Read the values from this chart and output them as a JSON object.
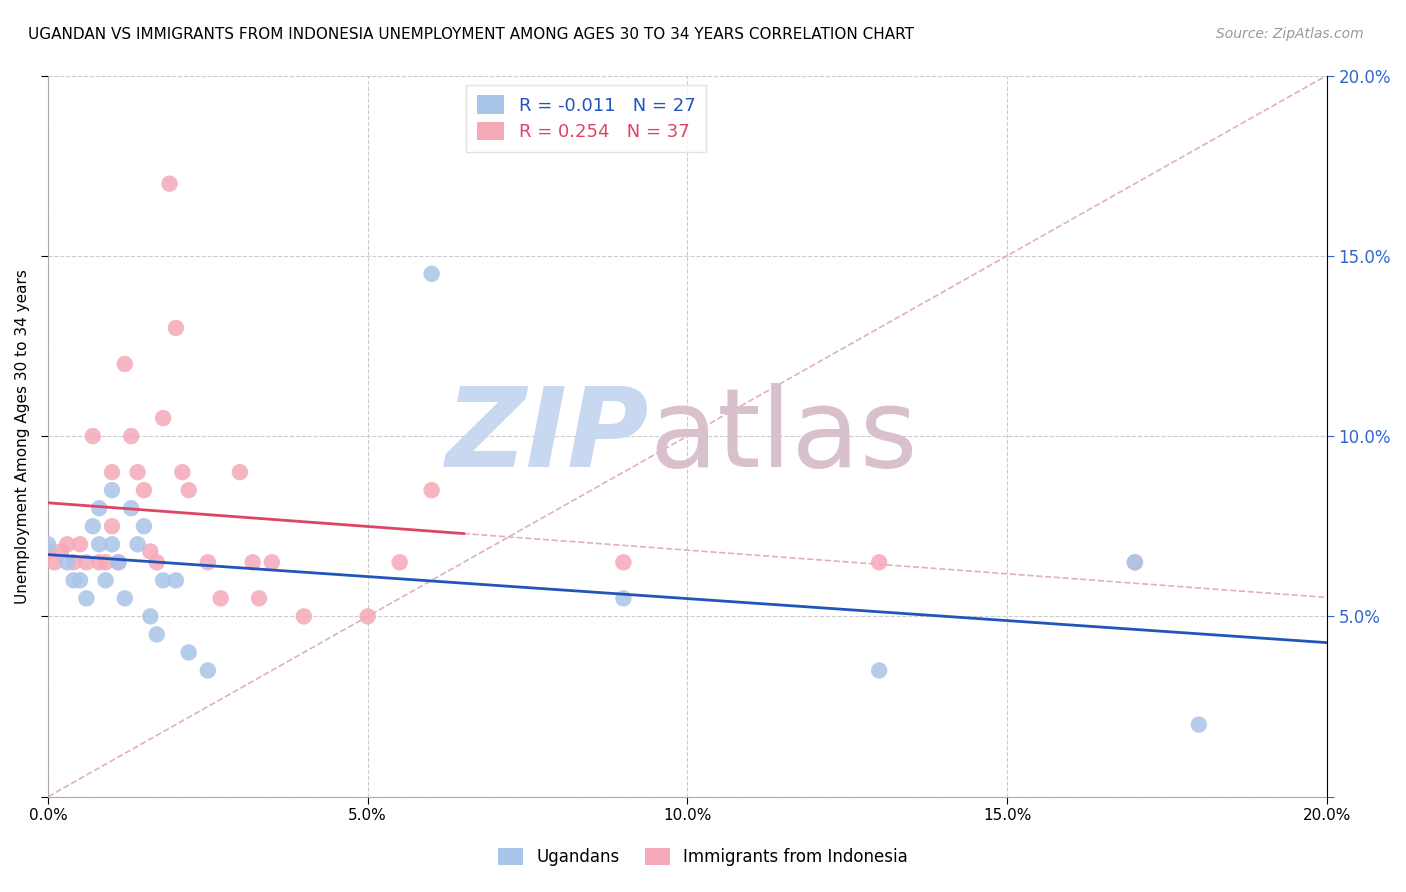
{
  "title": "UGANDAN VS IMMIGRANTS FROM INDONESIA UNEMPLOYMENT AMONG AGES 30 TO 34 YEARS CORRELATION CHART",
  "source": "Source: ZipAtlas.com",
  "ylabel": "Unemployment Among Ages 30 to 34 years",
  "xlim": [
    0,
    0.2
  ],
  "ylim": [
    0,
    0.2
  ],
  "xticks": [
    0.0,
    0.05,
    0.1,
    0.15,
    0.2
  ],
  "yticks": [
    0.0,
    0.05,
    0.1,
    0.15,
    0.2
  ],
  "ugandan_R": -0.011,
  "ugandan_N": 27,
  "indonesia_R": 0.254,
  "indonesia_N": 37,
  "ugandan_color": "#a8c4e8",
  "indonesia_color": "#f5a8b8",
  "ugandan_line_color": "#2255bb",
  "indonesia_line_color": "#dd4466",
  "diagonal_color": "#e0b0bc",
  "watermark_zip_color": "#c8d8f0",
  "watermark_atlas_color": "#d8c0cc",
  "ugandan_x": [
    0.0,
    0.003,
    0.004,
    0.005,
    0.006,
    0.007,
    0.008,
    0.008,
    0.009,
    0.01,
    0.01,
    0.011,
    0.012,
    0.013,
    0.014,
    0.015,
    0.016,
    0.017,
    0.018,
    0.02,
    0.022,
    0.025,
    0.06,
    0.09,
    0.13,
    0.17,
    0.18
  ],
  "ugandan_y": [
    0.07,
    0.065,
    0.06,
    0.06,
    0.055,
    0.075,
    0.08,
    0.07,
    0.06,
    0.085,
    0.07,
    0.065,
    0.055,
    0.08,
    0.07,
    0.075,
    0.05,
    0.045,
    0.06,
    0.06,
    0.04,
    0.035,
    0.145,
    0.055,
    0.035,
    0.065,
    0.02
  ],
  "indonesia_x": [
    0.0,
    0.001,
    0.002,
    0.003,
    0.004,
    0.005,
    0.006,
    0.007,
    0.008,
    0.009,
    0.01,
    0.01,
    0.011,
    0.012,
    0.013,
    0.014,
    0.015,
    0.016,
    0.017,
    0.018,
    0.019,
    0.02,
    0.021,
    0.022,
    0.025,
    0.027,
    0.03,
    0.032,
    0.033,
    0.035,
    0.04,
    0.05,
    0.055,
    0.06,
    0.09,
    0.13,
    0.17
  ],
  "indonesia_y": [
    0.068,
    0.065,
    0.068,
    0.07,
    0.065,
    0.07,
    0.065,
    0.1,
    0.065,
    0.065,
    0.09,
    0.075,
    0.065,
    0.12,
    0.1,
    0.09,
    0.085,
    0.068,
    0.065,
    0.105,
    0.17,
    0.13,
    0.09,
    0.085,
    0.065,
    0.055,
    0.09,
    0.065,
    0.055,
    0.065,
    0.05,
    0.05,
    0.065,
    0.085,
    0.065,
    0.065,
    0.065
  ],
  "indonesia_line_x_end": 0.065,
  "background_color": "#ffffff"
}
